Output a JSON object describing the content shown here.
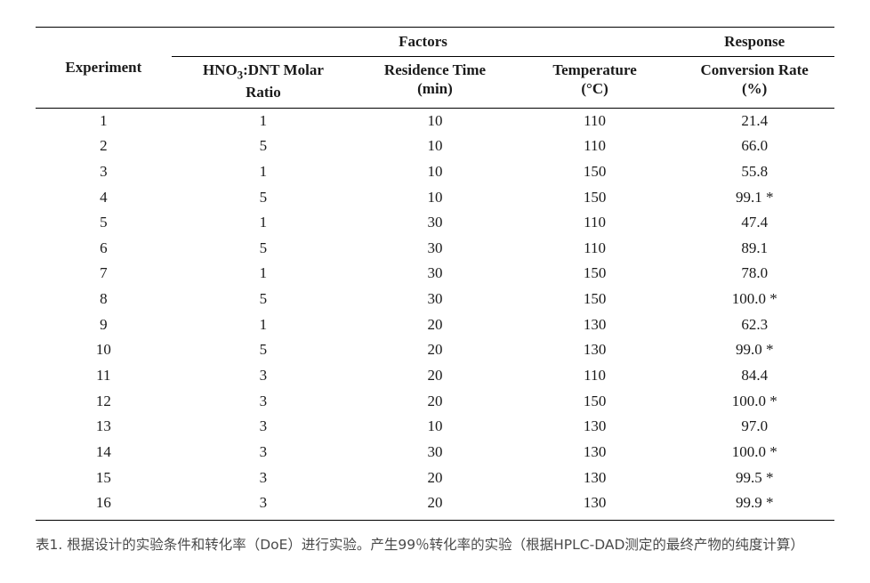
{
  "table": {
    "header": {
      "experiment": "Experiment",
      "factors": "Factors",
      "response": "Response",
      "ratio_line1": "HNO",
      "ratio_sub": "3",
      "ratio_line1b": ":DNT Molar",
      "ratio_line2": "Ratio",
      "time_line1": "Residence Time",
      "time_line2": "(min)",
      "temp_line1": "Temperature",
      "temp_line2": "(°C)",
      "resp_line1": "Conversion Rate",
      "resp_line2": "(%)"
    },
    "rows": [
      {
        "exp": "1",
        "ratio": "1",
        "time": "10",
        "temp": "110",
        "resp": "21.4"
      },
      {
        "exp": "2",
        "ratio": "5",
        "time": "10",
        "temp": "110",
        "resp": "66.0"
      },
      {
        "exp": "3",
        "ratio": "1",
        "time": "10",
        "temp": "150",
        "resp": "55.8"
      },
      {
        "exp": "4",
        "ratio": "5",
        "time": "10",
        "temp": "150",
        "resp": "99.1 *"
      },
      {
        "exp": "5",
        "ratio": "1",
        "time": "30",
        "temp": "110",
        "resp": "47.4"
      },
      {
        "exp": "6",
        "ratio": "5",
        "time": "30",
        "temp": "110",
        "resp": "89.1"
      },
      {
        "exp": "7",
        "ratio": "1",
        "time": "30",
        "temp": "150",
        "resp": "78.0"
      },
      {
        "exp": "8",
        "ratio": "5",
        "time": "30",
        "temp": "150",
        "resp": "100.0 *"
      },
      {
        "exp": "9",
        "ratio": "1",
        "time": "20",
        "temp": "130",
        "resp": "62.3"
      },
      {
        "exp": "10",
        "ratio": "5",
        "time": "20",
        "temp": "130",
        "resp": "99.0 *"
      },
      {
        "exp": "11",
        "ratio": "3",
        "time": "20",
        "temp": "110",
        "resp": "84.4"
      },
      {
        "exp": "12",
        "ratio": "3",
        "time": "20",
        "temp": "150",
        "resp": "100.0 *"
      },
      {
        "exp": "13",
        "ratio": "3",
        "time": "10",
        "temp": "130",
        "resp": "97.0"
      },
      {
        "exp": "14",
        "ratio": "3",
        "time": "30",
        "temp": "130",
        "resp": "100.0 *"
      },
      {
        "exp": "15",
        "ratio": "3",
        "time": "20",
        "temp": "130",
        "resp": "99.5 *"
      },
      {
        "exp": "16",
        "ratio": "3",
        "time": "20",
        "temp": "130",
        "resp": "99.9 *"
      }
    ]
  },
  "caption": "表1. 根据设计的实验条件和转化率（DoE）进行实验。产生99％转化率的实验（根据HPLC-DAD测定的最终产物的纯度计算）"
}
